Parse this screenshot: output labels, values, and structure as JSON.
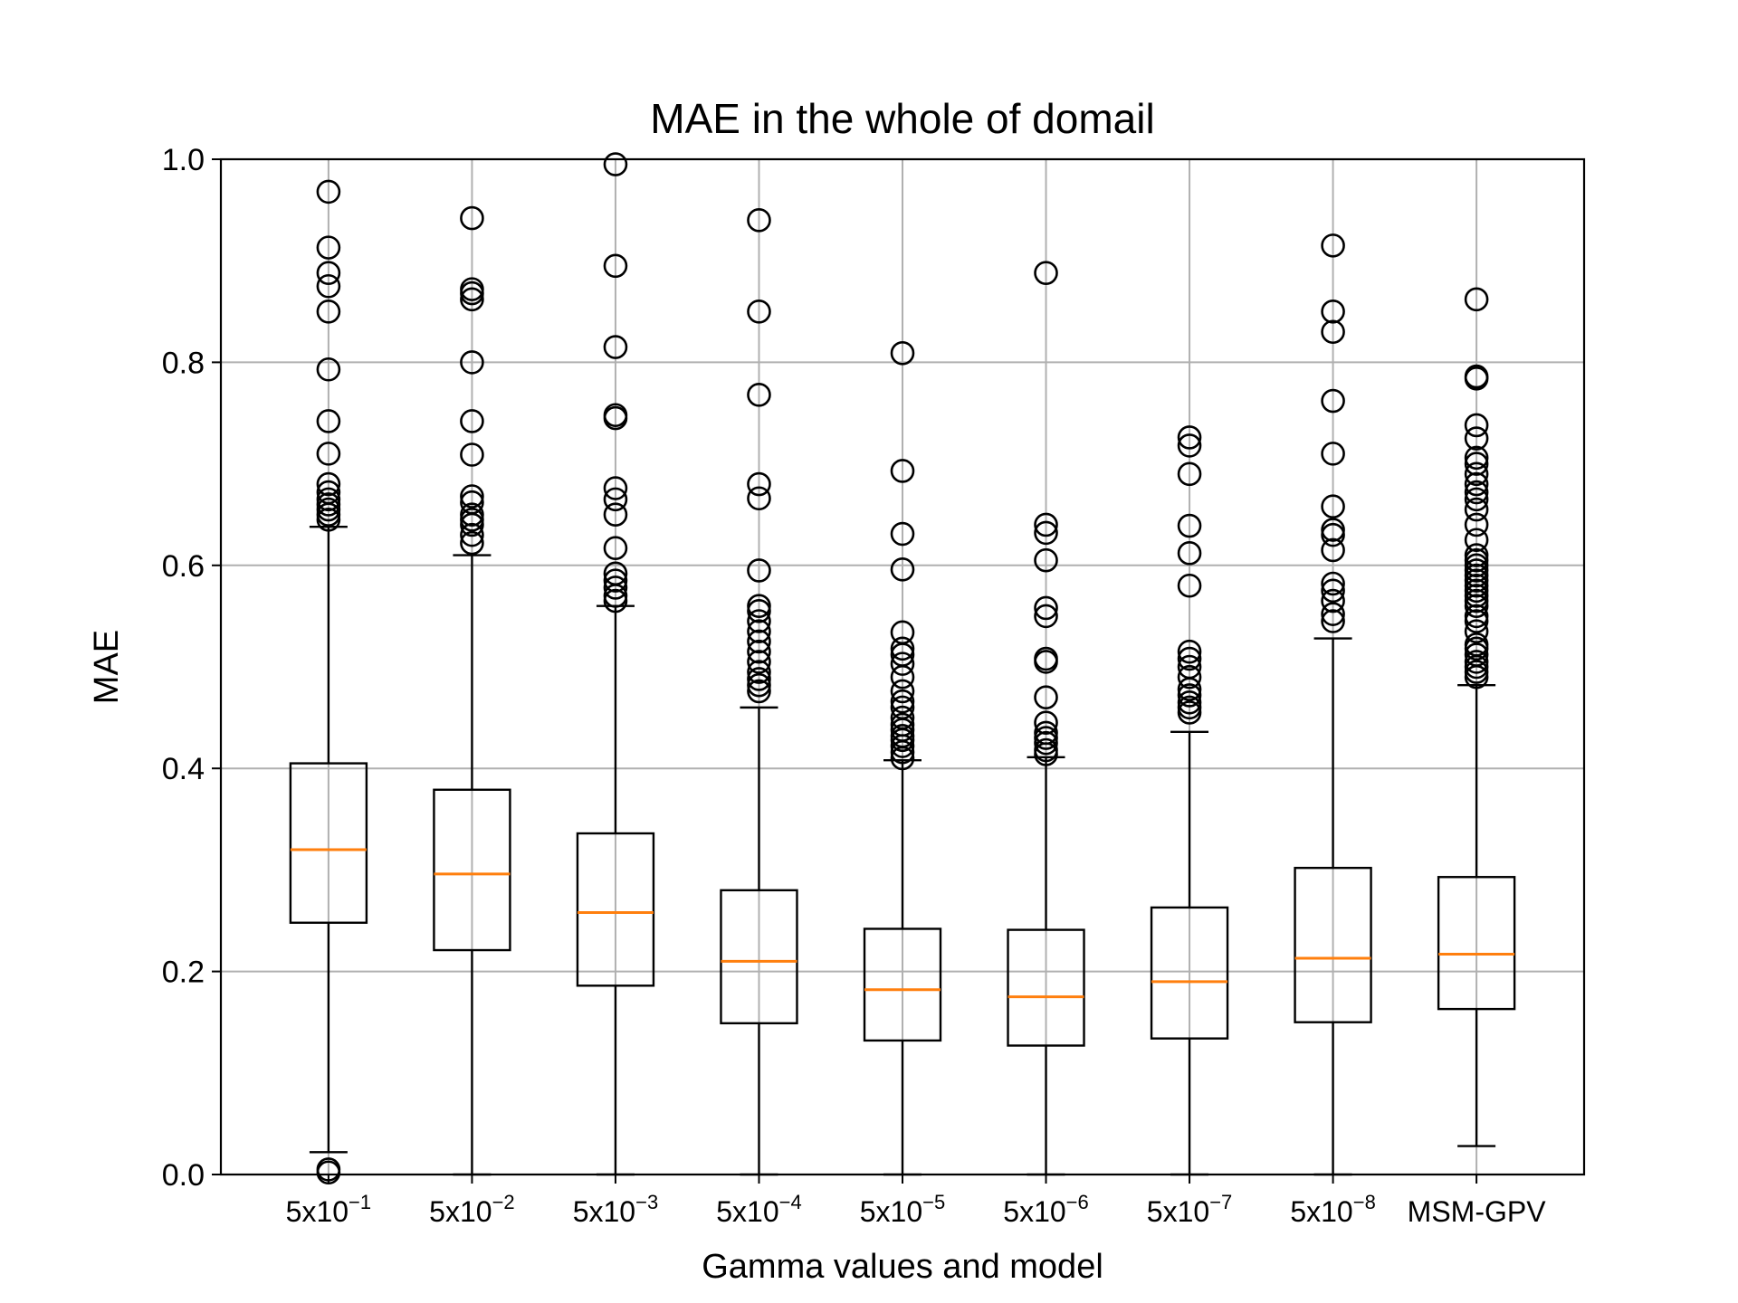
{
  "colors": {
    "box": "#000000",
    "median": "#ff7f0e",
    "grid": "#b0b0b0",
    "background": "#ffffff"
  },
  "chart_data": {
    "type": "boxplot",
    "title": "MAE in the whole of domail",
    "xlabel": "Gamma values and model",
    "ylabel": "MAE",
    "ylim": [
      0.0,
      1.0
    ],
    "yticks": [
      "0.0",
      "0.2",
      "0.4",
      "0.6",
      "0.8",
      "1.0"
    ],
    "grid": true,
    "categories": [
      {
        "base": "5x10",
        "exp": "−1"
      },
      {
        "base": "5x10",
        "exp": "−2"
      },
      {
        "base": "5x10",
        "exp": "−3"
      },
      {
        "base": "5x10",
        "exp": "−4"
      },
      {
        "base": "5x10",
        "exp": "−5"
      },
      {
        "base": "5x10",
        "exp": "−6"
      },
      {
        "base": "5x10",
        "exp": "−7"
      },
      {
        "base": "5x10",
        "exp": "−8"
      },
      {
        "base": "MSM-GPV",
        "exp": ""
      }
    ],
    "boxes": [
      {
        "whisker_low": 0.022,
        "q1": 0.248,
        "median": 0.32,
        "q3": 0.405,
        "whisker_high": 0.638,
        "outliers": [
          0.968,
          0.913,
          0.888,
          0.875,
          0.85,
          0.793,
          0.742,
          0.71,
          0.68,
          0.672,
          0.665,
          0.66,
          0.655,
          0.65,
          0.645,
          0.005,
          0.002
        ]
      },
      {
        "whisker_low": 0.0,
        "q1": 0.221,
        "median": 0.296,
        "q3": 0.379,
        "whisker_high": 0.61,
        "outliers": [
          0.942,
          0.872,
          0.868,
          0.862,
          0.8,
          0.742,
          0.709,
          0.668,
          0.662,
          0.65,
          0.645,
          0.64,
          0.63,
          0.622
        ]
      },
      {
        "whisker_low": 0.0,
        "q1": 0.186,
        "median": 0.258,
        "q3": 0.336,
        "whisker_high": 0.56,
        "outliers": [
          0.995,
          0.895,
          0.815,
          0.748,
          0.745,
          0.676,
          0.665,
          0.65,
          0.617,
          0.592,
          0.585,
          0.578,
          0.57,
          0.565
        ]
      },
      {
        "whisker_low": 0.0,
        "q1": 0.149,
        "median": 0.21,
        "q3": 0.28,
        "whisker_high": 0.46,
        "outliers": [
          0.94,
          0.85,
          0.768,
          0.68,
          0.666,
          0.595,
          0.56,
          0.555,
          0.545,
          0.535,
          0.525,
          0.515,
          0.505,
          0.495,
          0.488,
          0.482,
          0.476
        ]
      },
      {
        "whisker_low": 0.0,
        "q1": 0.132,
        "median": 0.182,
        "q3": 0.242,
        "whisker_high": 0.408,
        "outliers": [
          0.809,
          0.693,
          0.631,
          0.596,
          0.534,
          0.518,
          0.512,
          0.503,
          0.49,
          0.476,
          0.466,
          0.46,
          0.45,
          0.443,
          0.438,
          0.432,
          0.428,
          0.422,
          0.416,
          0.41
        ]
      },
      {
        "whisker_low": 0.0,
        "q1": 0.127,
        "median": 0.175,
        "q3": 0.241,
        "whisker_high": 0.411,
        "outliers": [
          0.888,
          0.64,
          0.632,
          0.605,
          0.558,
          0.55,
          0.508,
          0.505,
          0.47,
          0.445,
          0.435,
          0.43,
          0.425,
          0.418,
          0.414
        ]
      },
      {
        "whisker_low": 0.0,
        "q1": 0.134,
        "median": 0.19,
        "q3": 0.263,
        "whisker_high": 0.436,
        "outliers": [
          0.726,
          0.718,
          0.69,
          0.639,
          0.612,
          0.58,
          0.515,
          0.508,
          0.5,
          0.49,
          0.478,
          0.472,
          0.465,
          0.46,
          0.455
        ]
      },
      {
        "whisker_low": 0.0,
        "q1": 0.15,
        "median": 0.213,
        "q3": 0.302,
        "whisker_high": 0.528,
        "outliers": [
          0.915,
          0.85,
          0.83,
          0.762,
          0.71,
          0.658,
          0.635,
          0.63,
          0.615,
          0.582,
          0.575,
          0.565,
          0.552,
          0.545
        ]
      },
      {
        "whisker_low": 0.028,
        "q1": 0.163,
        "median": 0.217,
        "q3": 0.293,
        "whisker_high": 0.482,
        "outliers": [
          0.862,
          0.786,
          0.784,
          0.738,
          0.725,
          0.706,
          0.7,
          0.69,
          0.68,
          0.672,
          0.665,
          0.655,
          0.64,
          0.625,
          0.61,
          0.605,
          0.6,
          0.595,
          0.59,
          0.585,
          0.58,
          0.575,
          0.57,
          0.565,
          0.56,
          0.55,
          0.545,
          0.535,
          0.522,
          0.518,
          0.512,
          0.505,
          0.5,
          0.495,
          0.49
        ]
      }
    ]
  }
}
